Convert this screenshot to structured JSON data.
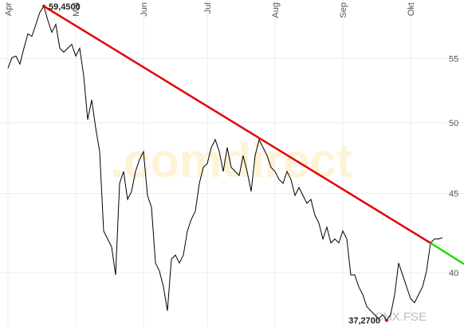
{
  "chart_data": {
    "type": "line",
    "log_scale": true,
    "grid": true,
    "watermark": ".comdirect",
    "symbol": "CHX.FSE",
    "xlim": [
      -2,
      114.4
    ],
    "ylim": [
      36.9,
      60
    ],
    "xticks": [
      {
        "value": 0,
        "label": "Apr"
      },
      {
        "value": 17,
        "label": "Mai"
      },
      {
        "value": 34,
        "label": "Jun"
      },
      {
        "value": 50,
        "label": "Jul"
      },
      {
        "value": 67,
        "label": "Aug"
      },
      {
        "value": 84,
        "label": "Sep"
      },
      {
        "value": 101,
        "label": "Okt"
      }
    ],
    "yticks": [
      40,
      45,
      50,
      55
    ],
    "series": [
      {
        "color": "#000000",
        "values": [
          54.22,
          55.07,
          55.2,
          54.55,
          55.85,
          57.06,
          56.85,
          57.87,
          58.91,
          59.45,
          58.21,
          57.19,
          57.87,
          55.85,
          55.52,
          55.85,
          56.18,
          55.2,
          55.85,
          53.59,
          50.21,
          51.72,
          49.62,
          47.9,
          42.56,
          42.06,
          41.56,
          39.87,
          45.68,
          46.5,
          44.61,
          45.14,
          46.5,
          47.33,
          47.9,
          44.87,
          44.09,
          40.58,
          40.1,
          39.17,
          37.8,
          40.82,
          41.06,
          40.58,
          41.06,
          42.56,
          43.31,
          43.83,
          45.68,
          46.78,
          47.05,
          48.18,
          48.75,
          47.9,
          46.5,
          48.18,
          46.78,
          46.5,
          46.22,
          47.61,
          46.5,
          45.14,
          47.61,
          48.75,
          48.18,
          47.61,
          46.78,
          46.5,
          45.95,
          45.68,
          46.5,
          45.95,
          44.87,
          45.41,
          44.87,
          44.35,
          44.61,
          43.57,
          43.06,
          42.06,
          42.8,
          41.81,
          42.06,
          41.81,
          42.56,
          42.06,
          39.87,
          39.87,
          39.17,
          38.72,
          38.04,
          37.8,
          37.58,
          37.36,
          37.58,
          37.27,
          37.58,
          38.72,
          40.58,
          39.87,
          39.17,
          38.49,
          38.26,
          38.72,
          39.17,
          40.1,
          41.81,
          42.06,
          42.06,
          42.14
        ]
      }
    ],
    "trendlines": [
      {
        "color": "#e00000",
        "x": [
          9,
          106
        ],
        "values": [
          59.45,
          41.81
        ]
      },
      {
        "color": "#22dd00",
        "x": [
          106,
          114.4
        ],
        "values": [
          41.81,
          40.52
        ]
      }
    ],
    "annotations": [
      {
        "text": "59,4500",
        "x": 9,
        "y": 59.45,
        "anchor": "start"
      },
      {
        "text": "37,2700",
        "x": 95,
        "y": 37.27,
        "anchor": "end"
      }
    ]
  }
}
